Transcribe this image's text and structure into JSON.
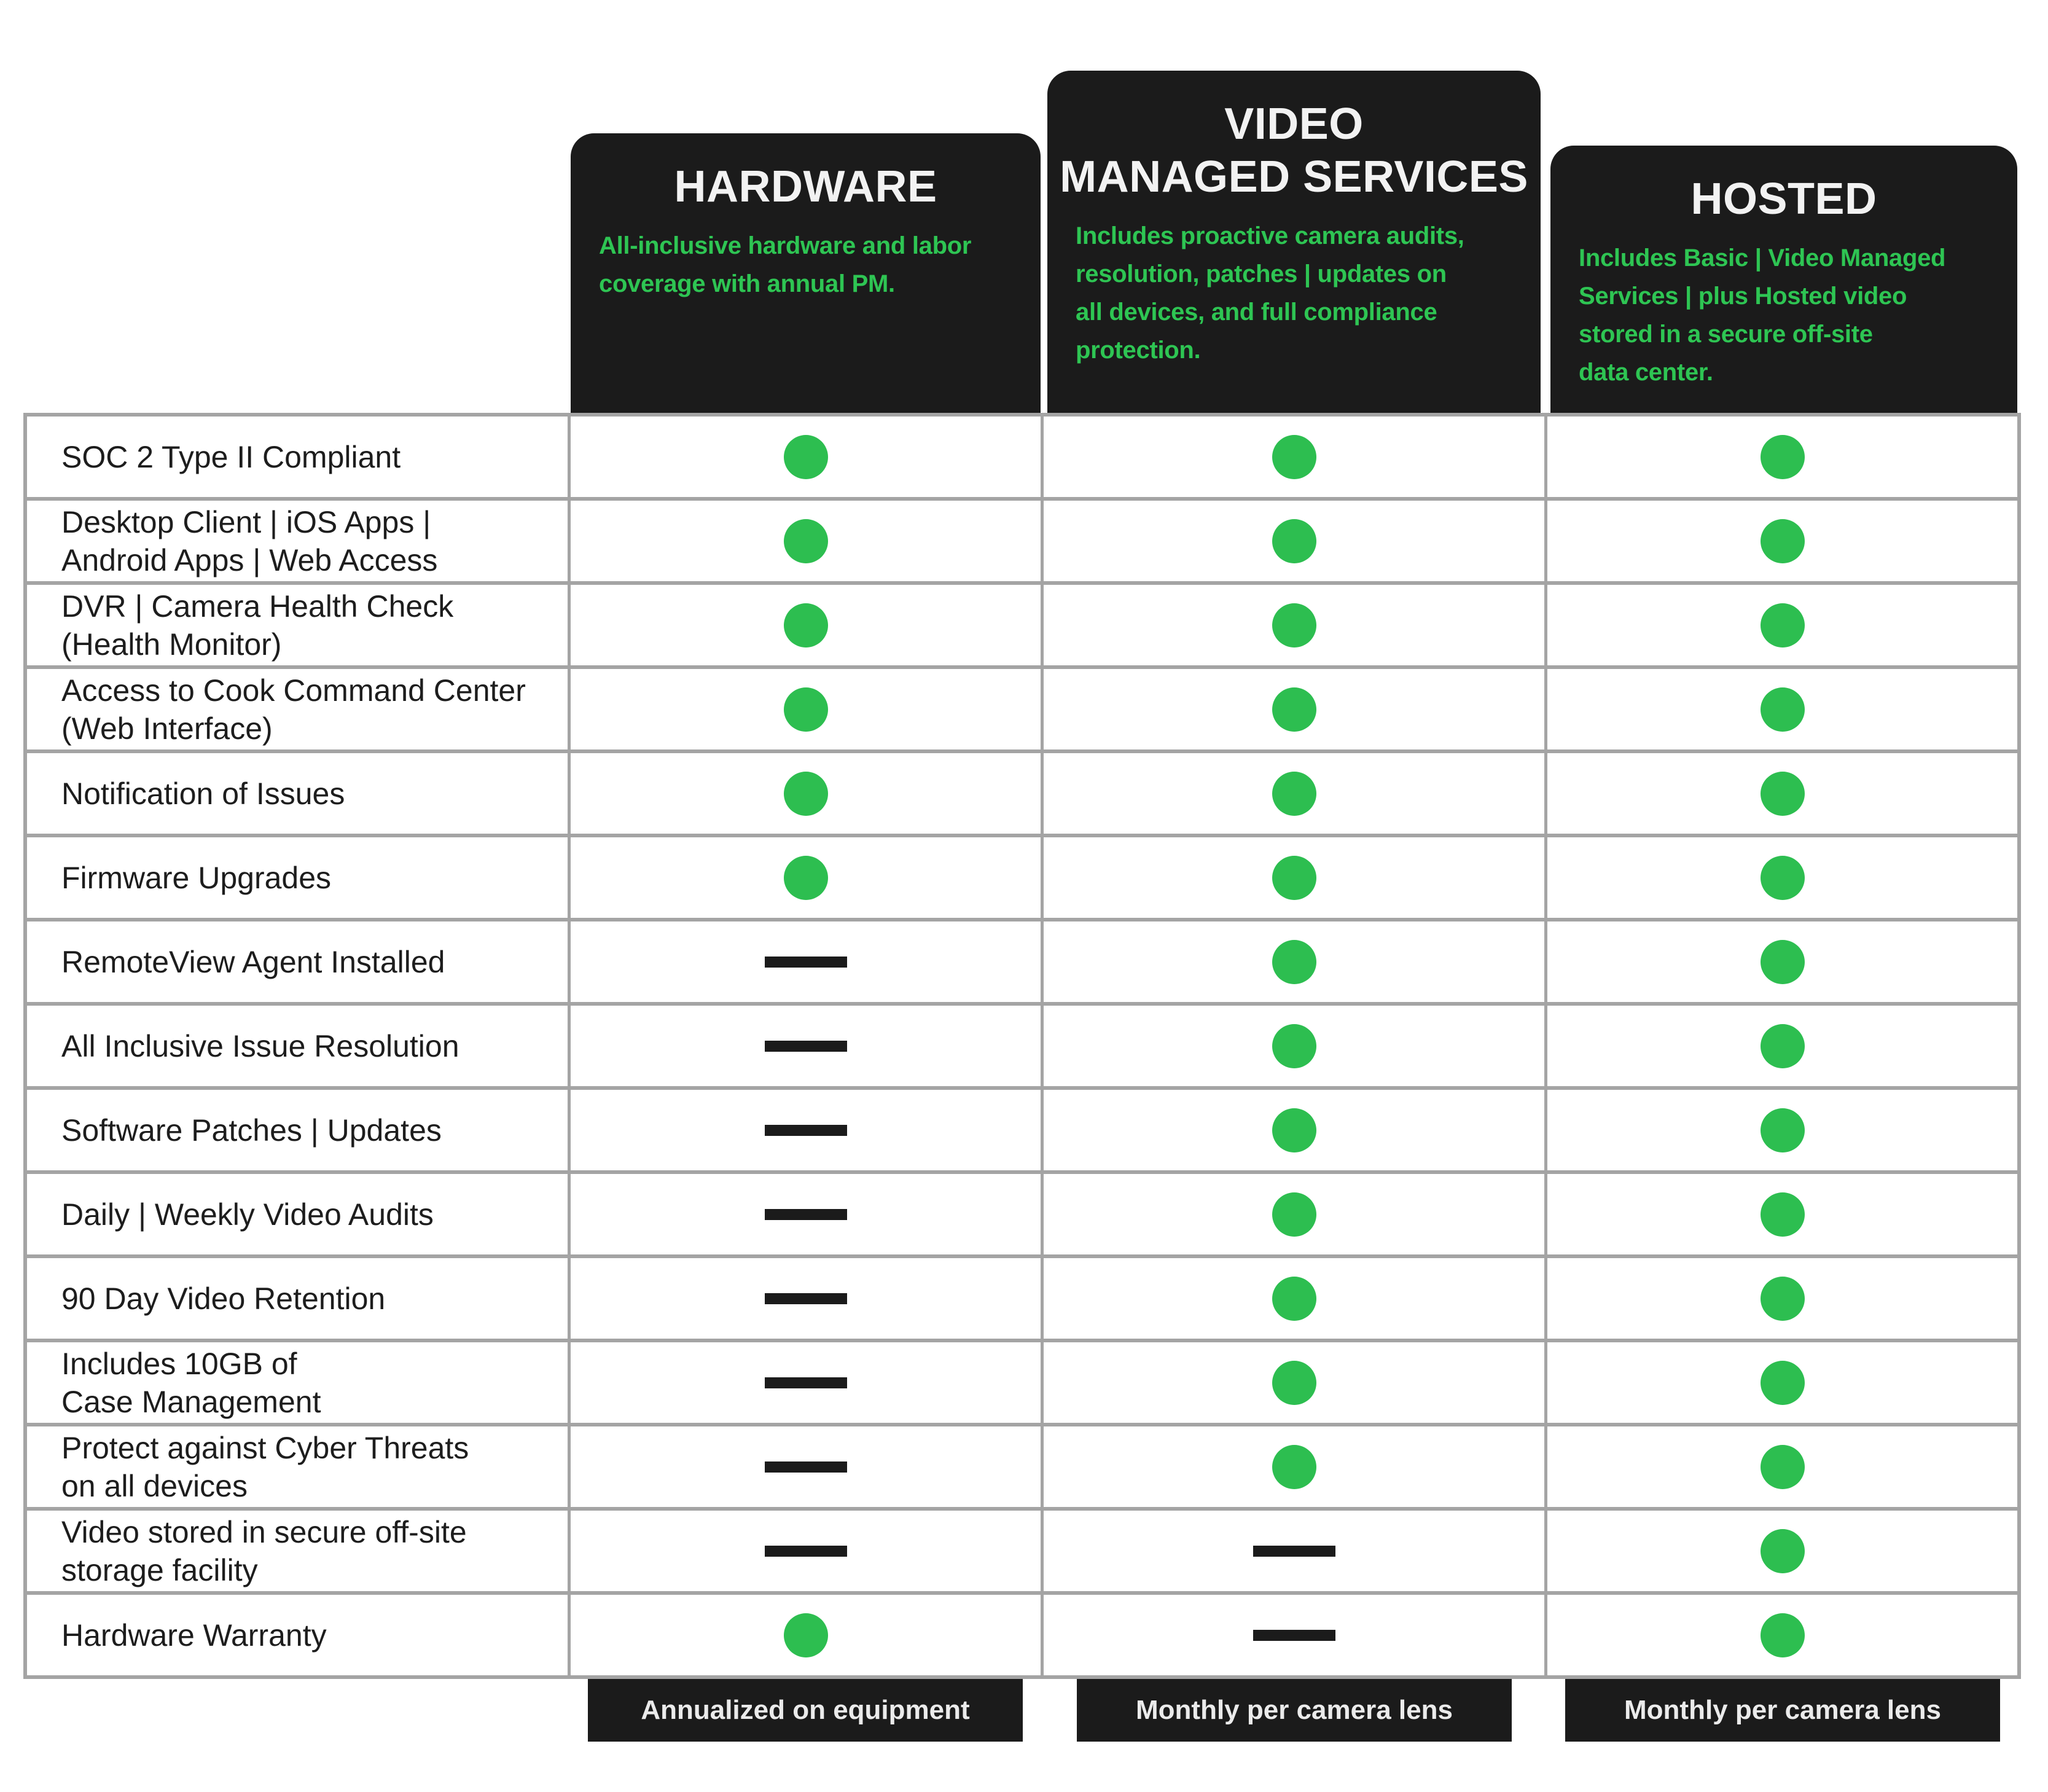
{
  "columns": [
    {
      "title": "HARDWARE",
      "subtitle": "All-inclusive hardware and labor\ncoverage with annual PM.",
      "footer": "Annualized on equipment"
    },
    {
      "title": "VIDEO\nMANAGED SERVICES",
      "subtitle": "Includes proactive camera audits,\nresolution, patches | updates on\nall devices, and full compliance\nprotection.",
      "footer": "Monthly per camera lens"
    },
    {
      "title": "HOSTED",
      "subtitle": "Includes Basic | Video Managed\nServices | plus Hosted video\nstored in a secure off-site\ndata center.",
      "footer": "Monthly per camera lens"
    }
  ],
  "rows": [
    {
      "label": "SOC 2 Type II Compliant",
      "cells": [
        "dot",
        "dot",
        "dot"
      ]
    },
    {
      "label": "Desktop Client | iOS Apps |\nAndroid Apps | Web Access",
      "cells": [
        "dot",
        "dot",
        "dot"
      ]
    },
    {
      "label": "DVR | Camera Health Check\n(Health Monitor)",
      "cells": [
        "dot",
        "dot",
        "dot"
      ]
    },
    {
      "label": "Access to Cook Command Center\n(Web Interface)",
      "cells": [
        "dot",
        "dot",
        "dot"
      ]
    },
    {
      "label": "Notification of Issues",
      "cells": [
        "dot",
        "dot",
        "dot"
      ]
    },
    {
      "label": "Firmware Upgrades",
      "cells": [
        "dot",
        "dot",
        "dot"
      ]
    },
    {
      "label": "RemoteView Agent Installed",
      "cells": [
        "dash",
        "dot",
        "dot"
      ]
    },
    {
      "label": "All Inclusive Issue Resolution",
      "cells": [
        "dash",
        "dot",
        "dot"
      ]
    },
    {
      "label": "Software Patches | Updates",
      "cells": [
        "dash",
        "dot",
        "dot"
      ]
    },
    {
      "label": "Daily | Weekly Video Audits",
      "cells": [
        "dash",
        "dot",
        "dot"
      ]
    },
    {
      "label": "90 Day Video Retention",
      "cells": [
        "dash",
        "dot",
        "dot"
      ]
    },
    {
      "label": "Includes 10GB of\nCase Management",
      "cells": [
        "dash",
        "dot",
        "dot"
      ]
    },
    {
      "label": "Protect against Cyber Threats\non all devices",
      "cells": [
        "dash",
        "dot",
        "dot"
      ]
    },
    {
      "label": "Video stored in secure off-site\nstorage facility",
      "cells": [
        "dash",
        "dash",
        "dot"
      ]
    },
    {
      "label": "Hardware Warranty",
      "cells": [
        "dot",
        "dash",
        "dot"
      ]
    }
  ],
  "symbols": {
    "dot": "included",
    "dash": "not included"
  },
  "colors": {
    "dot_green": "#2dbe50",
    "subtitle_green": "#2ec553",
    "header_black": "#1b1b1b",
    "grid_grey": "#a4a4a4",
    "footer_text": "#ebebeb"
  },
  "chart_data": {
    "type": "table",
    "title": "Service plan feature comparison",
    "columns": [
      "HARDWARE",
      "VIDEO MANAGED SERVICES",
      "HOSTED"
    ],
    "column_subtitles": [
      "All-inclusive hardware and labor coverage with annual PM.",
      "Includes proactive camera audits, resolution, patches | updates on all devices, and full compliance protection.",
      "Includes Basic | Video Managed Services | plus Hosted video stored in a secure off-site data center."
    ],
    "column_pricing": [
      "Annualized on equipment",
      "Monthly per camera lens",
      "Monthly per camera lens"
    ],
    "categories": [
      "SOC 2 Type II Compliant",
      "Desktop Client | iOS Apps | Android Apps | Web Access",
      "DVR | Camera Health Check (Health Monitor)",
      "Access to Cook Command Center (Web Interface)",
      "Notification of Issues",
      "Firmware Upgrades",
      "RemoteView Agent Installed",
      "All Inclusive Issue Resolution",
      "Software Patches | Updates",
      "Daily | Weekly Video Audits",
      "90 Day Video Retention",
      "Includes 10GB of Case Management",
      "Protect against Cyber Threats on all devices",
      "Video stored in secure off-site storage facility",
      "Hardware Warranty"
    ],
    "included_matrix": [
      [
        true,
        true,
        true
      ],
      [
        true,
        true,
        true
      ],
      [
        true,
        true,
        true
      ],
      [
        true,
        true,
        true
      ],
      [
        true,
        true,
        true
      ],
      [
        true,
        true,
        true
      ],
      [
        false,
        true,
        true
      ],
      [
        false,
        true,
        true
      ],
      [
        false,
        true,
        true
      ],
      [
        false,
        true,
        true
      ],
      [
        false,
        true,
        true
      ],
      [
        false,
        true,
        true
      ],
      [
        false,
        true,
        true
      ],
      [
        false,
        false,
        true
      ],
      [
        true,
        false,
        true
      ]
    ],
    "legend_position": "none",
    "grid": true
  }
}
